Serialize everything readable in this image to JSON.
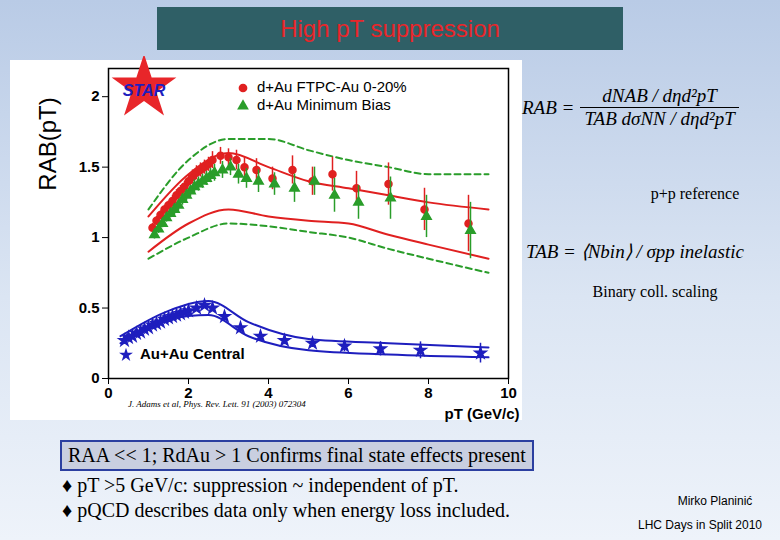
{
  "chart_data": {
    "type": "scatter",
    "x_label": "pT (GeV/c)",
    "y_label": "RAB(pT)",
    "xlim": [
      0,
      10
    ],
    "xticks": [
      0,
      2,
      4,
      6,
      8,
      10
    ],
    "ylim": [
      0,
      2.2
    ],
    "yticks": [
      0,
      0.5,
      1,
      1.5,
      2
    ],
    "grid": false,
    "legend": "top",
    "annotations": [
      "STAR",
      "J. Adams et al, Phys. Rev. Lett. 91 (2003) 072304"
    ],
    "series": [
      {
        "name": "d+Au FTPC-Au 0-20%",
        "color": "#e02020",
        "marker": "circle",
        "x": [
          1.1,
          1.2,
          1.3,
          1.4,
          1.5,
          1.6,
          1.7,
          1.8,
          1.9,
          2.0,
          2.1,
          2.2,
          2.3,
          2.4,
          2.5,
          2.6,
          2.8,
          3.0,
          3.2,
          3.4,
          3.7,
          4.1,
          4.6,
          5.1,
          5.6,
          6.2,
          7.0,
          7.9,
          9.0
        ],
        "values": [
          1.07,
          1.12,
          1.16,
          1.2,
          1.23,
          1.26,
          1.3,
          1.33,
          1.36,
          1.4,
          1.43,
          1.46,
          1.48,
          1.5,
          1.52,
          1.55,
          1.58,
          1.57,
          1.55,
          1.5,
          1.48,
          1.42,
          1.48,
          1.4,
          1.45,
          1.35,
          1.38,
          1.2,
          1.1
        ],
        "errors": [
          0.03,
          0.03,
          0.03,
          0.03,
          0.03,
          0.04,
          0.04,
          0.04,
          0.04,
          0.04,
          0.05,
          0.05,
          0.05,
          0.05,
          0.05,
          0.06,
          0.06,
          0.06,
          0.07,
          0.07,
          0.08,
          0.08,
          0.1,
          0.1,
          0.12,
          0.12,
          0.15,
          0.15,
          0.2
        ]
      },
      {
        "name": "d+Au Minimum Bias",
        "color": "#2a9d2a",
        "marker": "triangle",
        "x": [
          1.15,
          1.25,
          1.35,
          1.45,
          1.55,
          1.65,
          1.75,
          1.85,
          1.95,
          2.05,
          2.15,
          2.25,
          2.35,
          2.45,
          2.55,
          2.65,
          2.85,
          3.05,
          3.25,
          3.45,
          3.75,
          4.15,
          4.65,
          5.15,
          5.65,
          6.25,
          7.05,
          7.95,
          9.05
        ],
        "values": [
          1.02,
          1.06,
          1.1,
          1.14,
          1.17,
          1.2,
          1.23,
          1.27,
          1.3,
          1.33,
          1.36,
          1.38,
          1.4,
          1.42,
          1.44,
          1.46,
          1.48,
          1.5,
          1.45,
          1.42,
          1.4,
          1.38,
          1.35,
          1.4,
          1.3,
          1.25,
          1.28,
          1.15,
          1.05
        ],
        "errors": [
          0.03,
          0.03,
          0.03,
          0.03,
          0.03,
          0.04,
          0.04,
          0.04,
          0.04,
          0.04,
          0.05,
          0.05,
          0.05,
          0.05,
          0.05,
          0.06,
          0.06,
          0.06,
          0.07,
          0.07,
          0.08,
          0.08,
          0.1,
          0.1,
          0.12,
          0.12,
          0.15,
          0.15,
          0.2
        ]
      },
      {
        "name": "Au+Au Central",
        "color": "#1e1ebe",
        "marker": "star",
        "x": [
          0.4,
          0.5,
          0.6,
          0.7,
          0.8,
          0.9,
          1.0,
          1.1,
          1.2,
          1.3,
          1.4,
          1.5,
          1.6,
          1.7,
          1.8,
          1.9,
          2.0,
          2.2,
          2.4,
          2.6,
          2.9,
          3.3,
          3.8,
          4.4,
          5.1,
          5.9,
          6.8,
          7.8,
          9.3
        ],
        "values": [
          0.27,
          0.29,
          0.3,
          0.32,
          0.33,
          0.35,
          0.36,
          0.38,
          0.39,
          0.4,
          0.42,
          0.43,
          0.44,
          0.45,
          0.46,
          0.47,
          0.48,
          0.5,
          0.52,
          0.5,
          0.44,
          0.36,
          0.3,
          0.27,
          0.25,
          0.23,
          0.21,
          0.2,
          0.18
        ],
        "errors": [
          0.01,
          0.01,
          0.01,
          0.01,
          0.01,
          0.01,
          0.01,
          0.01,
          0.01,
          0.01,
          0.01,
          0.01,
          0.01,
          0.01,
          0.01,
          0.01,
          0.02,
          0.02,
          0.02,
          0.02,
          0.02,
          0.02,
          0.03,
          0.03,
          0.03,
          0.04,
          0.05,
          0.06,
          0.07
        ]
      }
    ],
    "bands": [
      {
        "color": "#e02020",
        "line_style": "solid",
        "x": [
          1,
          2,
          3,
          4,
          5,
          6,
          7,
          8,
          9.5
        ],
        "upper": [
          1.15,
          1.45,
          1.6,
          1.5,
          1.4,
          1.35,
          1.3,
          1.25,
          1.2
        ],
        "lower": [
          0.9,
          1.1,
          1.2,
          1.15,
          1.12,
          1.1,
          1.02,
          0.95,
          0.85
        ]
      },
      {
        "color": "#2a9d2a",
        "line_style": "dashed",
        "x": [
          1,
          2,
          3,
          4,
          5,
          6,
          7,
          8,
          9.5
        ],
        "upper": [
          1.2,
          1.55,
          1.7,
          1.7,
          1.62,
          1.55,
          1.5,
          1.45,
          1.45
        ],
        "lower": [
          0.85,
          1.0,
          1.1,
          1.08,
          1.04,
          1.0,
          0.92,
          0.85,
          0.75
        ]
      },
      {
        "color": "#1e1ebe",
        "line_style": "solid",
        "x": [
          0.3,
          1.5,
          2.5,
          3.5,
          5,
          7,
          9.5
        ],
        "upper": [
          0.3,
          0.48,
          0.55,
          0.4,
          0.28,
          0.25,
          0.22
        ],
        "lower": [
          0.25,
          0.42,
          0.45,
          0.3,
          0.2,
          0.17,
          0.15
        ]
      }
    ]
  },
  "slide": {
    "title": "High pT suppression",
    "formula_RAB": {
      "lhs": "RAB =",
      "numerator": "dNAB / dηd²pT",
      "denominator": "TAB dσNN / dηd²pT"
    },
    "formula_note": "p+p reference",
    "formula_TAB": {
      "lhs": "TAB =",
      "rhs": "⟨Nbin⟩ / σpp inelastic"
    },
    "formula_TAB_note": "Binary coll. scaling",
    "highlight": "RAA << 1; RdAu > 1 Confirms final state effects present",
    "bullets": [
      "♦ pT >5 GeV/c: suppression ~ independent of pT.",
      "♦ pQCD describes data only when energy loss included."
    ],
    "author": "Mirko Planinić",
    "event": "LHC Days in Split 2010"
  }
}
